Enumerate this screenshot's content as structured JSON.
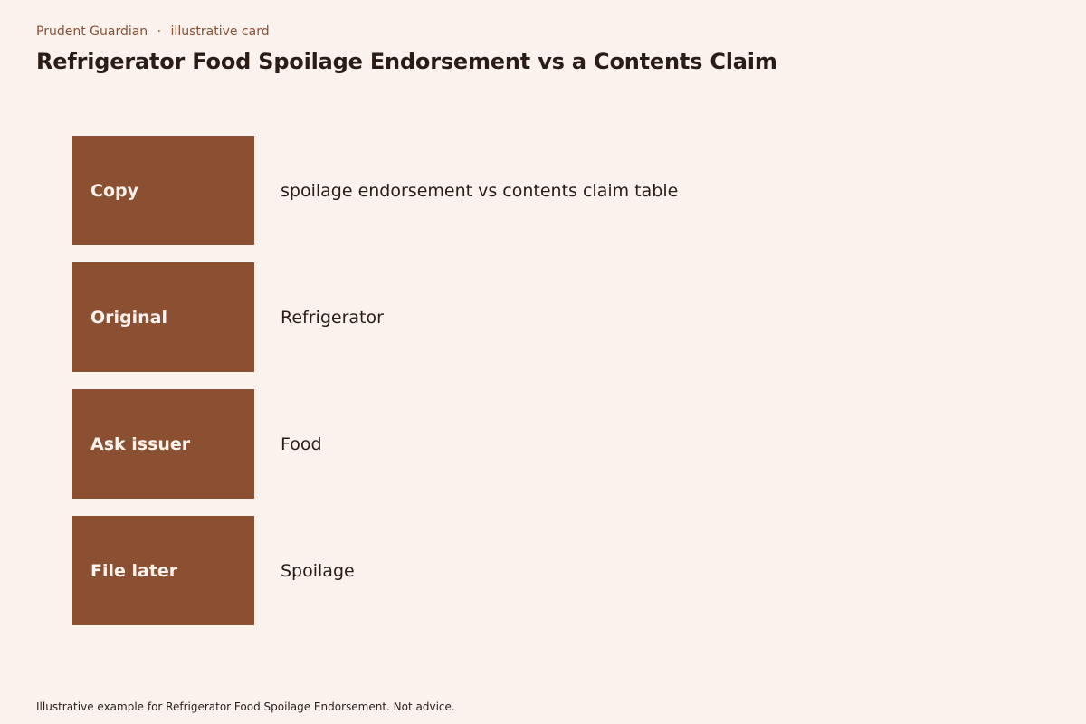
{
  "header": {
    "brand": "Prudent Guardian",
    "separator": "·",
    "tag": "illustrative card",
    "title": "Refrigerator Food Spoilage Endorsement vs a Contents Claim"
  },
  "rows": [
    {
      "label": "Copy",
      "value": "spoilage endorsement vs contents claim table"
    },
    {
      "label": "Original",
      "value": "Refrigerator"
    },
    {
      "label": "Ask issuer",
      "value": "Food"
    },
    {
      "label": "File later",
      "value": "Spoilage"
    }
  ],
  "footer": {
    "note": "Illustrative example for Refrigerator Food Spoilage Endorsement. Not advice."
  },
  "colors": {
    "background": "#fbf2ee",
    "accent": "#8b4f32",
    "text": "#2b1d16"
  }
}
